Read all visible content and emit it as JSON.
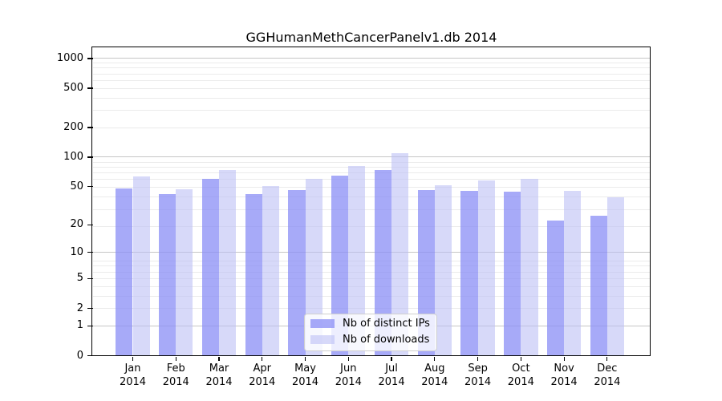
{
  "title": "GGHumanMethCancerPanelv1.db 2014",
  "chart_data": {
    "type": "bar",
    "title": "GGHumanMethCancerPanelv1.db 2014",
    "x_months": [
      "Jan",
      "Feb",
      "Mar",
      "Apr",
      "May",
      "Jun",
      "Jul",
      "Aug",
      "Sep",
      "Oct",
      "Nov",
      "Dec"
    ],
    "x_year": "2014",
    "series": [
      {
        "name": "Nb of distinct IPs",
        "color": "rgba(138,142,245,0.75)",
        "values": [
          48,
          42,
          60,
          42,
          46,
          65,
          74,
          46,
          45,
          44,
          22,
          25
        ]
      },
      {
        "name": "Nb of downloads",
        "color": "rgba(186,190,244,0.58)",
        "values": [
          63,
          47,
          74,
          51,
          60,
          81,
          110,
          52,
          58,
          60,
          45,
          39
        ]
      }
    ],
    "y_ticks": [
      0,
      1,
      2,
      5,
      10,
      20,
      50,
      100,
      200,
      500,
      1000
    ],
    "y_scale": "log10(1+x)",
    "ylim": [
      0,
      1300
    ],
    "y_major_gridlines": [
      1,
      10,
      100,
      1000
    ],
    "y_minor_gridlines": [
      2,
      3,
      4,
      5,
      6,
      7,
      8,
      19,
      29,
      39,
      49,
      59,
      69,
      79,
      89,
      199,
      299,
      399,
      499,
      599,
      699,
      799,
      899
    ],
    "grid": true,
    "legend_position": "lower center"
  },
  "colors": {
    "major_grid": "#c6c6c6",
    "minor_grid": "#ebebeb",
    "spine": "#000000",
    "background": "#ffffff"
  }
}
